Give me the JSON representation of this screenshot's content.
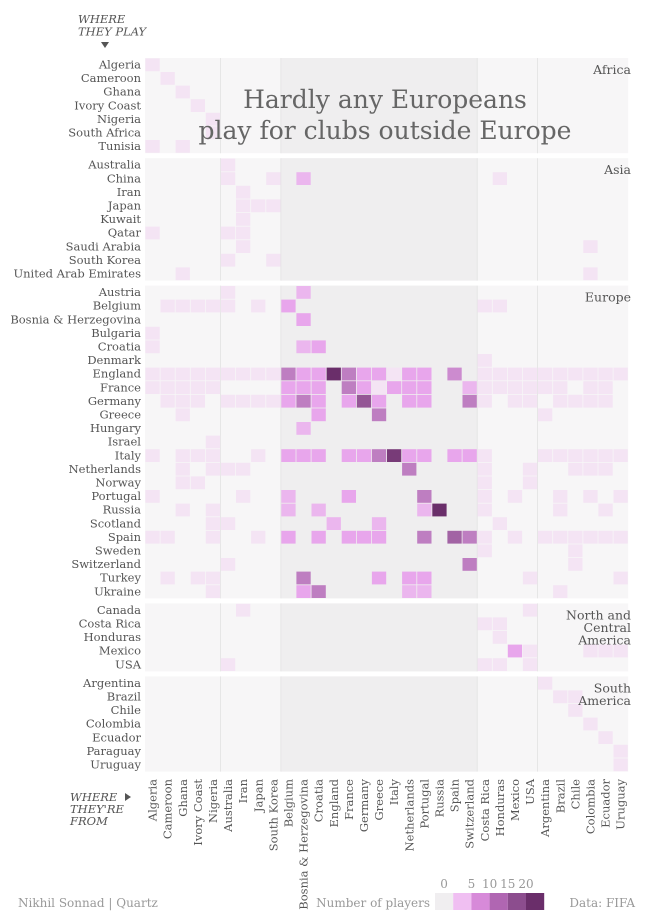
{
  "chart_data": {
    "type": "heatmap",
    "title": "Hardly any Europeans play for clubs outside Europe",
    "title_lines": [
      "Hardly any Europeans",
      "play for clubs outside Europe"
    ],
    "y_axis_title_lines": [
      "WHERE",
      "THEY PLAY"
    ],
    "x_axis_title_lines": [
      "WHERE",
      "THEY'RE",
      "FROM"
    ],
    "credit": "Nikhil Sonnad | Quartz",
    "source": "Data: FIFA",
    "colors": {
      "bg": "#f7f6f7",
      "euro_bg": "#efeeef",
      "zero": "#f0eef0",
      "low": "#f4e4f4",
      "mid": "#e8a6ec",
      "high": "#6a2e6a",
      "text": "#555555",
      "title": "#666666",
      "grid": "#e2e2e2"
    },
    "legend": {
      "title": "Number of players",
      "ticks": [
        "0",
        "5",
        "10",
        "15",
        "20"
      ],
      "swatches": [
        "#f0eef0",
        "#f0bff2",
        "#d78ad9",
        "#b066b2",
        "#8c4d8e",
        "#6a2e6a"
      ]
    },
    "row_groups": [
      {
        "name": "Africa",
        "label_lines": [
          "Africa"
        ],
        "rows": [
          "Algeria",
          "Cameroon",
          "Ghana",
          "Ivory Coast",
          "Nigeria",
          "South Africa",
          "Tunisia"
        ]
      },
      {
        "name": "Asia",
        "label_lines": [
          "Asia"
        ],
        "rows": [
          "Australia",
          "China",
          "Iran",
          "Japan",
          "Kuwait",
          "Qatar",
          "Saudi Arabia",
          "South Korea",
          "United Arab Emirates"
        ]
      },
      {
        "name": "Europe",
        "label_lines": [
          "Europe"
        ],
        "rows": [
          "Austria",
          "Belgium",
          "Bosnia & Herzegovina",
          "Bulgaria",
          "Croatia",
          "Denmark",
          "England",
          "France",
          "Germany",
          "Greece",
          "Hungary",
          "Israel",
          "Italy",
          "Netherlands",
          "Norway",
          "Portugal",
          "Russia",
          "Scotland",
          "Spain",
          "Sweden",
          "Switzerland",
          "Turkey",
          "Ukraine"
        ]
      },
      {
        "name": "North and Central America",
        "label_lines": [
          "North and",
          "Central",
          "America"
        ],
        "rows": [
          "Canada",
          "Costa Rica",
          "Honduras",
          "Mexico",
          "USA"
        ]
      },
      {
        "name": "South America",
        "label_lines": [
          "South",
          "America"
        ],
        "rows": [
          "Argentina",
          "Brazil",
          "Chile",
          "Colombia",
          "Ecuador",
          "Paraguay",
          "Uruguay"
        ]
      }
    ],
    "column_groups": [
      [
        "Algeria",
        "Cameroon",
        "Ghana",
        "Ivory Coast",
        "Nigeria"
      ],
      [
        "Australia",
        "Iran",
        "Japan",
        "South Korea"
      ],
      [
        "Belgium",
        "Bosnia & Herzegovina",
        "Croatia",
        "England",
        "France",
        "Germany",
        "Greece",
        "Italy",
        "Netherlands",
        "Portugal",
        "Russia",
        "Spain",
        "Switzerland"
      ],
      [
        "Costa Rica",
        "Honduras",
        "Mexico",
        "USA"
      ],
      [
        "Argentina",
        "Brazil",
        "Chile",
        "Colombia",
        "Ecuador",
        "Uruguay"
      ]
    ],
    "cells": [
      [
        "Algeria",
        "Algeria",
        1
      ],
      [
        "Cameroon",
        "Cameroon",
        1
      ],
      [
        "Ghana",
        "Ghana",
        1
      ],
      [
        "Ivory Coast",
        "Ivory Coast",
        1
      ],
      [
        "Nigeria",
        "Nigeria",
        1
      ],
      [
        "South Africa",
        "Nigeria",
        1
      ],
      [
        "Tunisia",
        "Algeria",
        1
      ],
      [
        "Tunisia",
        "Ghana",
        1
      ],
      [
        "Australia",
        "Australia",
        1
      ],
      [
        "China",
        "Australia",
        1
      ],
      [
        "China",
        "South Korea",
        1
      ],
      [
        "China",
        "Bosnia & Herzegovina",
        4
      ],
      [
        "China",
        "Honduras",
        1
      ],
      [
        "Iran",
        "Iran",
        1
      ],
      [
        "Japan",
        "Japan",
        1
      ],
      [
        "Japan",
        "South Korea",
        1
      ],
      [
        "Japan",
        "Iran",
        1
      ],
      [
        "Kuwait",
        "Iran",
        1
      ],
      [
        "Qatar",
        "Algeria",
        1
      ],
      [
        "Qatar",
        "Australia",
        1
      ],
      [
        "Qatar",
        "Iran",
        1
      ],
      [
        "Saudi Arabia",
        "Iran",
        1
      ],
      [
        "Saudi Arabia",
        "Colombia",
        1
      ],
      [
        "South Korea",
        "Australia",
        1
      ],
      [
        "South Korea",
        "South Korea",
        1
      ],
      [
        "United Arab Emirates",
        "Ghana",
        1
      ],
      [
        "United Arab Emirates",
        "Colombia",
        1
      ],
      [
        "Austria",
        "Australia",
        1
      ],
      [
        "Austria",
        "Bosnia & Herzegovina",
        4
      ],
      [
        "Belgium",
        "Cameroon",
        1
      ],
      [
        "Belgium",
        "Ghana",
        1
      ],
      [
        "Belgium",
        "Ivory Coast",
        1
      ],
      [
        "Belgium",
        "Nigeria",
        1
      ],
      [
        "Belgium",
        "Australia",
        1
      ],
      [
        "Belgium",
        "Japan",
        1
      ],
      [
        "Belgium",
        "Belgium",
        5
      ],
      [
        "Belgium",
        "Costa Rica",
        1
      ],
      [
        "Belgium",
        "Honduras",
        1
      ],
      [
        "Bosnia & Herzegovina",
        "Bosnia & Herzegovina",
        5
      ],
      [
        "Bulgaria",
        "Algeria",
        1
      ],
      [
        "Croatia",
        "Algeria",
        1
      ],
      [
        "Croatia",
        "Bosnia & Herzegovina",
        4
      ],
      [
        "Croatia",
        "Croatia",
        5
      ],
      [
        "Denmark",
        "Costa Rica",
        1
      ],
      [
        "England",
        "Algeria",
        1
      ],
      [
        "England",
        "Cameroon",
        1
      ],
      [
        "England",
        "Ghana",
        1
      ],
      [
        "England",
        "Ivory Coast",
        1
      ],
      [
        "England",
        "Nigeria",
        1
      ],
      [
        "England",
        "Australia",
        1
      ],
      [
        "England",
        "Iran",
        1
      ],
      [
        "England",
        "Japan",
        1
      ],
      [
        "England",
        "South Korea",
        1
      ],
      [
        "England",
        "Belgium",
        11
      ],
      [
        "England",
        "Bosnia & Herzegovina",
        5
      ],
      [
        "England",
        "Croatia",
        5
      ],
      [
        "England",
        "England",
        23
      ],
      [
        "England",
        "France",
        11
      ],
      [
        "England",
        "Germany",
        5
      ],
      [
        "England",
        "Greece",
        5
      ],
      [
        "England",
        "Italy",
        1
      ],
      [
        "England",
        "Netherlands",
        5
      ],
      [
        "England",
        "Portugal",
        5
      ],
      [
        "England",
        "Spain",
        9
      ],
      [
        "England",
        "Costa Rica",
        1
      ],
      [
        "England",
        "Honduras",
        1
      ],
      [
        "England",
        "Mexico",
        1
      ],
      [
        "England",
        "USA",
        1
      ],
      [
        "England",
        "Argentina",
        1
      ],
      [
        "England",
        "Brazil",
        1
      ],
      [
        "England",
        "Chile",
        1
      ],
      [
        "England",
        "Colombia",
        1
      ],
      [
        "England",
        "Ecuador",
        1
      ],
      [
        "England",
        "Uruguay",
        1
      ],
      [
        "France",
        "Algeria",
        1
      ],
      [
        "France",
        "Cameroon",
        1
      ],
      [
        "France",
        "Ghana",
        1
      ],
      [
        "France",
        "Ivory Coast",
        1
      ],
      [
        "France",
        "Nigeria",
        1
      ],
      [
        "France",
        "Belgium",
        5
      ],
      [
        "France",
        "Bosnia & Herzegovina",
        5
      ],
      [
        "France",
        "Croatia",
        5
      ],
      [
        "France",
        "France",
        11
      ],
      [
        "France",
        "Germany",
        5
      ],
      [
        "France",
        "Greece",
        1
      ],
      [
        "France",
        "Italy",
        5
      ],
      [
        "France",
        "Netherlands",
        5
      ],
      [
        "France",
        "Portugal",
        5
      ],
      [
        "France",
        "Switzerland",
        4
      ],
      [
        "France",
        "Costa Rica",
        1
      ],
      [
        "France",
        "Honduras",
        1
      ],
      [
        "France",
        "Mexico",
        1
      ],
      [
        "France",
        "USA",
        1
      ],
      [
        "France",
        "Argentina",
        1
      ],
      [
        "France",
        "Brazil",
        1
      ],
      [
        "France",
        "Colombia",
        1
      ],
      [
        "France",
        "Ecuador",
        1
      ],
      [
        "Germany",
        "Cameroon",
        1
      ],
      [
        "Germany",
        "Ghana",
        1
      ],
      [
        "Germany",
        "Ivory Coast",
        1
      ],
      [
        "Germany",
        "Australia",
        1
      ],
      [
        "Germany",
        "Iran",
        1
      ],
      [
        "Germany",
        "Japan",
        1
      ],
      [
        "Germany",
        "South Korea",
        1
      ],
      [
        "Germany",
        "Belgium",
        5
      ],
      [
        "Germany",
        "Bosnia & Herzegovina",
        11
      ],
      [
        "Germany",
        "Croatia",
        5
      ],
      [
        "Germany",
        "France",
        5
      ],
      [
        "Germany",
        "Germany",
        17
      ],
      [
        "Germany",
        "Greece",
        5
      ],
      [
        "Germany",
        "Netherlands",
        5
      ],
      [
        "Germany",
        "Portugal",
        5
      ],
      [
        "Germany",
        "Switzerland",
        11
      ],
      [
        "Germany",
        "Costa Rica",
        1
      ],
      [
        "Germany",
        "Mexico",
        1
      ],
      [
        "Germany",
        "USA",
        1
      ],
      [
        "Germany",
        "Brazil",
        1
      ],
      [
        "Germany",
        "Chile",
        1
      ],
      [
        "Germany",
        "Colombia",
        1
      ],
      [
        "Germany",
        "Ecuador",
        1
      ],
      [
        "Greece",
        "Ghana",
        1
      ],
      [
        "Greece",
        "Croatia",
        5
      ],
      [
        "Greece",
        "Greece",
        11
      ],
      [
        "Greece",
        "Argentina",
        1
      ],
      [
        "Hungary",
        "Bosnia & Herzegovina",
        4
      ],
      [
        "Israel",
        "Nigeria",
        1
      ],
      [
        "Italy",
        "Algeria",
        1
      ],
      [
        "Italy",
        "Ghana",
        1
      ],
      [
        "Italy",
        "Ivory Coast",
        1
      ],
      [
        "Italy",
        "Nigeria",
        1
      ],
      [
        "Italy",
        "Japan",
        1
      ],
      [
        "Italy",
        "Belgium",
        5
      ],
      [
        "Italy",
        "Bosnia & Herzegovina",
        5
      ],
      [
        "Italy",
        "Croatia",
        5
      ],
      [
        "Italy",
        "France",
        5
      ],
      [
        "Italy",
        "Germany",
        5
      ],
      [
        "Italy",
        "Greece",
        11
      ],
      [
        "Italy",
        "Italy",
        21
      ],
      [
        "Italy",
        "Netherlands",
        5
      ],
      [
        "Italy",
        "Portugal",
        5
      ],
      [
        "Italy",
        "Spain",
        5
      ],
      [
        "Italy",
        "Switzerland",
        5
      ],
      [
        "Italy",
        "Costa Rica",
        1
      ],
      [
        "Italy",
        "Argentina",
        1
      ],
      [
        "Italy",
        "Brazil",
        1
      ],
      [
        "Italy",
        "Chile",
        1
      ],
      [
        "Italy",
        "Colombia",
        1
      ],
      [
        "Italy",
        "Ecuador",
        1
      ],
      [
        "Italy",
        "Uruguay",
        1
      ],
      [
        "Netherlands",
        "Ghana",
        1
      ],
      [
        "Netherlands",
        "Nigeria",
        1
      ],
      [
        "Netherlands",
        "Australia",
        1
      ],
      [
        "Netherlands",
        "Iran",
        1
      ],
      [
        "Netherlands",
        "Netherlands",
        11
      ],
      [
        "Netherlands",
        "Costa Rica",
        1
      ],
      [
        "Netherlands",
        "USA",
        1
      ],
      [
        "Netherlands",
        "Chile",
        1
      ],
      [
        "Netherlands",
        "Colombia",
        1
      ],
      [
        "Netherlands",
        "Ecuador",
        1
      ],
      [
        "Norway",
        "Ghana",
        1
      ],
      [
        "Norway",
        "Ivory Coast",
        1
      ],
      [
        "Norway",
        "Costa Rica",
        1
      ],
      [
        "Norway",
        "USA",
        1
      ],
      [
        "Portugal",
        "Algeria",
        1
      ],
      [
        "Portugal",
        "Iran",
        1
      ],
      [
        "Portugal",
        "Belgium",
        4
      ],
      [
        "Portugal",
        "France",
        5
      ],
      [
        "Portugal",
        "Portugal",
        11
      ],
      [
        "Portugal",
        "Costa Rica",
        1
      ],
      [
        "Portugal",
        "Mexico",
        1
      ],
      [
        "Portugal",
        "Brazil",
        1
      ],
      [
        "Portugal",
        "Colombia",
        1
      ],
      [
        "Portugal",
        "Uruguay",
        1
      ],
      [
        "Russia",
        "Ghana",
        1
      ],
      [
        "Russia",
        "Nigeria",
        1
      ],
      [
        "Russia",
        "Belgium",
        4
      ],
      [
        "Russia",
        "Croatia",
        4
      ],
      [
        "Russia",
        "Portugal",
        4
      ],
      [
        "Russia",
        "Russia",
        23
      ],
      [
        "Russia",
        "Costa Rica",
        1
      ],
      [
        "Russia",
        "Brazil",
        1
      ],
      [
        "Russia",
        "Ecuador",
        1
      ],
      [
        "Scotland",
        "Nigeria",
        1
      ],
      [
        "Scotland",
        "Australia",
        1
      ],
      [
        "Scotland",
        "England",
        4
      ],
      [
        "Scotland",
        "Greece",
        4
      ],
      [
        "Scotland",
        "Honduras",
        1
      ],
      [
        "Spain",
        "Algeria",
        1
      ],
      [
        "Spain",
        "Cameroon",
        1
      ],
      [
        "Spain",
        "Nigeria",
        1
      ],
      [
        "Spain",
        "Japan",
        1
      ],
      [
        "Spain",
        "Belgium",
        5
      ],
      [
        "Spain",
        "Croatia",
        5
      ],
      [
        "Spain",
        "France",
        5
      ],
      [
        "Spain",
        "Germany",
        5
      ],
      [
        "Spain",
        "Greece",
        5
      ],
      [
        "Spain",
        "Portugal",
        11
      ],
      [
        "Spain",
        "Spain",
        15
      ],
      [
        "Spain",
        "Switzerland",
        11
      ],
      [
        "Spain",
        "Costa Rica",
        1
      ],
      [
        "Spain",
        "Mexico",
        1
      ],
      [
        "Spain",
        "Argentina",
        1
      ],
      [
        "Spain",
        "Brazil",
        1
      ],
      [
        "Spain",
        "Chile",
        1
      ],
      [
        "Spain",
        "Colombia",
        1
      ],
      [
        "Spain",
        "Ecuador",
        1
      ],
      [
        "Spain",
        "Uruguay",
        1
      ],
      [
        "Sweden",
        "Costa Rica",
        1
      ],
      [
        "Sweden",
        "Chile",
        1
      ],
      [
        "Switzerland",
        "Australia",
        1
      ],
      [
        "Switzerland",
        "Switzerland",
        11
      ],
      [
        "Switzerland",
        "Chile",
        1
      ],
      [
        "Turkey",
        "Cameroon",
        1
      ],
      [
        "Turkey",
        "Ivory Coast",
        1
      ],
      [
        "Turkey",
        "Nigeria",
        1
      ],
      [
        "Turkey",
        "Bosnia & Herzegovina",
        11
      ],
      [
        "Turkey",
        "Greece",
        5
      ],
      [
        "Turkey",
        "Netherlands",
        5
      ],
      [
        "Turkey",
        "Portugal",
        5
      ],
      [
        "Turkey",
        "USA",
        1
      ],
      [
        "Turkey",
        "Uruguay",
        1
      ],
      [
        "Ukraine",
        "Nigeria",
        1
      ],
      [
        "Ukraine",
        "Bosnia & Herzegovina",
        5
      ],
      [
        "Ukraine",
        "Croatia",
        11
      ],
      [
        "Ukraine",
        "Netherlands",
        4
      ],
      [
        "Ukraine",
        "Portugal",
        4
      ],
      [
        "Ukraine",
        "Brazil",
        1
      ],
      [
        "Canada",
        "Iran",
        1
      ],
      [
        "Canada",
        "USA",
        1
      ],
      [
        "Costa Rica",
        "Costa Rica",
        1
      ],
      [
        "Costa Rica",
        "Honduras",
        1
      ],
      [
        "Honduras",
        "Honduras",
        1
      ],
      [
        "Mexico",
        "Mexico",
        5
      ],
      [
        "Mexico",
        "USA",
        1
      ],
      [
        "Mexico",
        "Ecuador",
        1
      ],
      [
        "Mexico",
        "Colombia",
        1
      ],
      [
        "Mexico",
        "Uruguay",
        1
      ],
      [
        "USA",
        "Australia",
        1
      ],
      [
        "USA",
        "Costa Rica",
        1
      ],
      [
        "USA",
        "Honduras",
        1
      ],
      [
        "USA",
        "USA",
        1
      ],
      [
        "Argentina",
        "Argentina",
        1
      ],
      [
        "Brazil",
        "Brazil",
        1
      ],
      [
        "Brazil",
        "Chile",
        1
      ],
      [
        "Chile",
        "Chile",
        1
      ],
      [
        "Colombia",
        "Colombia",
        1
      ],
      [
        "Ecuador",
        "Ecuador",
        1
      ],
      [
        "Paraguay",
        "Uruguay",
        1
      ],
      [
        "Uruguay",
        "Uruguay",
        1
      ]
    ]
  }
}
